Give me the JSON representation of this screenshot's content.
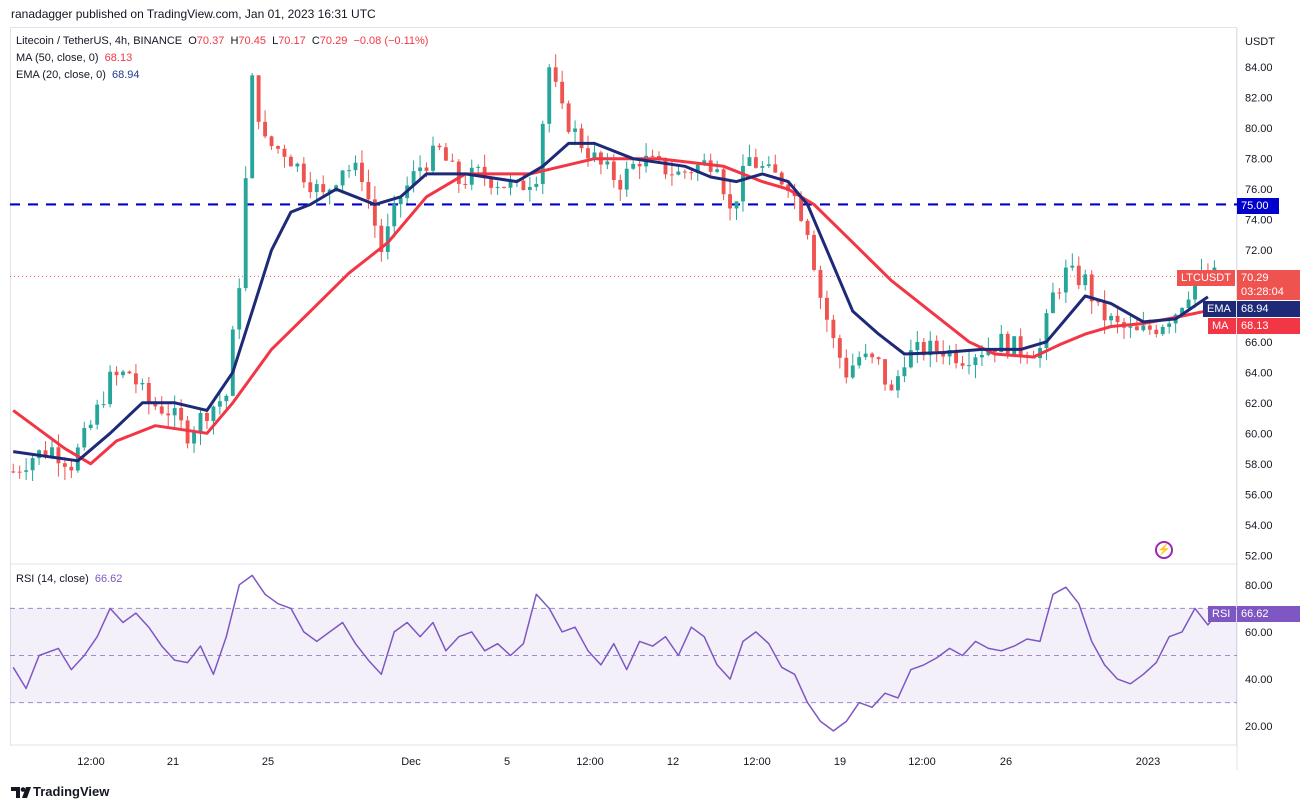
{
  "header": {
    "publisher_line": "ranadagger published on TradingView.com, Jan 01, 2023 16:31 UTC"
  },
  "legend": {
    "symbol": "Litecoin / TetherUS, 4h, BINANCE",
    "open_label": "O",
    "open": "70.37",
    "high_label": "H",
    "high": "70.45",
    "low_label": "L",
    "low": "70.17",
    "close_label": "C",
    "close": "70.29",
    "change": "−0.08 (−0.11%)",
    "ma_label": "MA (50, close, 0)",
    "ma_value": "68.13",
    "ema_label": "EMA (20, close, 0)",
    "ema_value": "68.94",
    "rsi_label": "RSI (14, close)",
    "rsi_value": "66.62"
  },
  "tags": {
    "level": "75.00",
    "symbol": "LTCUSDT",
    "price": "70.29",
    "countdown": "03:28:04",
    "ema": "EMA",
    "ema_value": "68.94",
    "ma": "MA",
    "ma_value": "68.13",
    "rsi": "RSI",
    "rsi_value": "66.62"
  },
  "footer": {
    "brand": "TradingView"
  },
  "colors": {
    "up": "#26a69a",
    "down": "#ef5350",
    "ema": "#1e2a78",
    "ma": "#f23645",
    "rsi": "#7e57c2",
    "level": "#0000cc"
  },
  "chart_data": [
    {
      "type": "candlestick",
      "title": "Litecoin / TetherUS, 4h, BINANCE",
      "y_unit": "USDT",
      "ylim": [
        51.5,
        86.5
      ],
      "y_ticks": [
        "52.00",
        "54.00",
        "56.00",
        "58.00",
        "60.00",
        "62.00",
        "64.00",
        "66.00",
        "68.00",
        "70.00",
        "72.00",
        "74.00",
        "76.00",
        "78.00",
        "80.00",
        "82.00",
        "84.00"
      ],
      "x_ticks": [
        "12:00",
        "21",
        "25",
        "Dec",
        "5",
        "12:00",
        "12",
        "12:00",
        "19",
        "12:00",
        "26",
        "2023"
      ],
      "horizontal_line": {
        "value": 75.0,
        "style": "dashed"
      },
      "last_price": 70.29,
      "close_path": [
        [
          0,
          57.5
        ],
        [
          3,
          58.5
        ],
        [
          6,
          59.0
        ],
        [
          9,
          58.0
        ],
        [
          12,
          60.5
        ],
        [
          15,
          63.5
        ],
        [
          18,
          64.0
        ],
        [
          21,
          62.0
        ],
        [
          24,
          61.5
        ],
        [
          27,
          60.0
        ],
        [
          30,
          61.5
        ],
        [
          33,
          62.5
        ],
        [
          35,
          70.0
        ],
        [
          37,
          83.0
        ],
        [
          39,
          79.0
        ],
        [
          42,
          78.5
        ],
        [
          45,
          77.0
        ],
        [
          48,
          75.5
        ],
        [
          51,
          77.5
        ],
        [
          54,
          77.0
        ],
        [
          57,
          72.0
        ],
        [
          60,
          75.5
        ],
        [
          63,
          77.5
        ],
        [
          66,
          78.5
        ],
        [
          69,
          76.5
        ],
        [
          72,
          77.0
        ],
        [
          75,
          76.5
        ],
        [
          78,
          76.0
        ],
        [
          81,
          77.0
        ],
        [
          83,
          84.0
        ],
        [
          85,
          81.0
        ],
        [
          88,
          79.0
        ],
        [
          91,
          77.5
        ],
        [
          94,
          76.5
        ],
        [
          97,
          78.0
        ],
        [
          100,
          77.5
        ],
        [
          103,
          77.0
        ],
        [
          106,
          77.5
        ],
        [
          109,
          78.0
        ],
        [
          111,
          74.5
        ],
        [
          114,
          78.0
        ],
        [
          117,
          77.0
        ],
        [
          120,
          76.5
        ],
        [
          123,
          73.5
        ],
        [
          125,
          69.0
        ],
        [
          127,
          66.0
        ],
        [
          129,
          64.0
        ],
        [
          131,
          65.0
        ],
        [
          134,
          64.5
        ],
        [
          136,
          62.5
        ],
        [
          138,
          65.0
        ],
        [
          141,
          65.5
        ],
        [
          144,
          65.5
        ],
        [
          147,
          65.0
        ],
        [
          150,
          65.5
        ],
        [
          153,
          66.0
        ],
        [
          156,
          65.5
        ],
        [
          159,
          65.5
        ],
        [
          161,
          69.0
        ],
        [
          163,
          70.5
        ],
        [
          166,
          70.0
        ],
        [
          168,
          68.0
        ],
        [
          171,
          67.0
        ],
        [
          174,
          66.5
        ],
        [
          177,
          67.0
        ],
        [
          180,
          68.0
        ],
        [
          183,
          70.0
        ],
        [
          186,
          70.29
        ]
      ],
      "series": [
        {
          "name": "EMA (20, close, 0)",
          "points": [
            [
              0,
              58.8
            ],
            [
              10,
              58.2
            ],
            [
              15,
              60.0
            ],
            [
              20,
              62.0
            ],
            [
              25,
              62.0
            ],
            [
              30,
              61.5
            ],
            [
              34,
              64.0
            ],
            [
              37,
              68.0
            ],
            [
              40,
              72.0
            ],
            [
              43,
              74.5
            ],
            [
              46,
              75.0
            ],
            [
              50,
              76.0
            ],
            [
              53,
              75.5
            ],
            [
              56,
              75.0
            ],
            [
              60,
              75.5
            ],
            [
              64,
              77.0
            ],
            [
              70,
              77.0
            ],
            [
              78,
              76.5
            ],
            [
              82,
              77.5
            ],
            [
              86,
              79.0
            ],
            [
              90,
              79.0
            ],
            [
              96,
              78.0
            ],
            [
              104,
              77.5
            ],
            [
              108,
              76.8
            ],
            [
              112,
              76.5
            ],
            [
              116,
              77.0
            ],
            [
              120,
              76.5
            ],
            [
              123,
              75.0
            ],
            [
              126,
              72.0
            ],
            [
              130,
              68.0
            ],
            [
              134,
              66.5
            ],
            [
              138,
              65.2
            ],
            [
              144,
              65.3
            ],
            [
              150,
              65.5
            ],
            [
              156,
              65.5
            ],
            [
              160,
              66.0
            ],
            [
              163,
              67.5
            ],
            [
              166,
              69.0
            ],
            [
              170,
              68.5
            ],
            [
              175,
              67.3
            ],
            [
              180,
              67.5
            ],
            [
              185,
              68.94
            ]
          ]
        },
        {
          "name": "MA (50, close, 0)",
          "points": [
            [
              0,
              61.5
            ],
            [
              8,
              59.0
            ],
            [
              12,
              58.0
            ],
            [
              16,
              59.5
            ],
            [
              22,
              60.5
            ],
            [
              30,
              60.0
            ],
            [
              34,
              62.0
            ],
            [
              40,
              65.5
            ],
            [
              46,
              68.0
            ],
            [
              52,
              70.5
            ],
            [
              58,
              72.5
            ],
            [
              64,
              75.5
            ],
            [
              70,
              77.0
            ],
            [
              80,
              77.0
            ],
            [
              90,
              78.0
            ],
            [
              100,
              78.0
            ],
            [
              110,
              77.5
            ],
            [
              116,
              76.5
            ],
            [
              120,
              76.0
            ],
            [
              124,
              75.0
            ],
            [
              130,
              72.5
            ],
            [
              136,
              70.0
            ],
            [
              142,
              68.0
            ],
            [
              148,
              66.0
            ],
            [
              152,
              65.2
            ],
            [
              158,
              65.0
            ],
            [
              162,
              65.8
            ],
            [
              166,
              66.5
            ],
            [
              170,
              67.0
            ],
            [
              175,
              67.2
            ],
            [
              180,
              67.6
            ],
            [
              186,
              68.13
            ]
          ]
        }
      ]
    },
    {
      "type": "line",
      "title": "RSI (14, close)",
      "ylim": [
        12,
        88
      ],
      "y_ticks": [
        "20.00",
        "40.00",
        "60.00",
        "80.00"
      ],
      "bands": [
        30,
        50,
        70
      ],
      "series": [
        {
          "name": "RSI (14, close)",
          "points": [
            [
              0,
              45
            ],
            [
              2,
              36
            ],
            [
              4,
              50
            ],
            [
              7,
              53
            ],
            [
              9,
              44
            ],
            [
              11,
              50
            ],
            [
              13,
              58
            ],
            [
              15,
              70
            ],
            [
              17,
              64
            ],
            [
              19,
              68
            ],
            [
              21,
              62
            ],
            [
              23,
              54
            ],
            [
              25,
              48
            ],
            [
              27,
              47
            ],
            [
              29,
              54
            ],
            [
              31,
              42
            ],
            [
              33,
              58
            ],
            [
              35,
              80
            ],
            [
              37,
              84
            ],
            [
              39,
              76
            ],
            [
              41,
              72
            ],
            [
              43,
              70
            ],
            [
              45,
              60
            ],
            [
              47,
              56
            ],
            [
              49,
              60
            ],
            [
              51,
              64
            ],
            [
              53,
              55
            ],
            [
              55,
              48
            ],
            [
              57,
              42
            ],
            [
              59,
              60
            ],
            [
              61,
              64
            ],
            [
              63,
              58
            ],
            [
              65,
              64
            ],
            [
              67,
              52
            ],
            [
              69,
              58
            ],
            [
              71,
              60
            ],
            [
              73,
              52
            ],
            [
              75,
              55
            ],
            [
              77,
              50
            ],
            [
              79,
              55
            ],
            [
              81,
              76
            ],
            [
              83,
              70
            ],
            [
              85,
              60
            ],
            [
              87,
              62
            ],
            [
              89,
              52
            ],
            [
              91,
              46
            ],
            [
              93,
              55
            ],
            [
              95,
              44
            ],
            [
              97,
              56
            ],
            [
              99,
              54
            ],
            [
              101,
              58
            ],
            [
              103,
              50
            ],
            [
              105,
              62
            ],
            [
              107,
              58
            ],
            [
              109,
              46
            ],
            [
              111,
              40
            ],
            [
              113,
              56
            ],
            [
              115,
              60
            ],
            [
              117,
              55
            ],
            [
              119,
              45
            ],
            [
              121,
              42
            ],
            [
              123,
              30
            ],
            [
              125,
              22
            ],
            [
              127,
              18
            ],
            [
              129,
              22
            ],
            [
              131,
              30
            ],
            [
              133,
              28
            ],
            [
              135,
              34
            ],
            [
              137,
              32
            ],
            [
              139,
              44
            ],
            [
              141,
              46
            ],
            [
              143,
              49
            ],
            [
              145,
              53
            ],
            [
              147,
              50
            ],
            [
              149,
              56
            ],
            [
              151,
              53
            ],
            [
              153,
              52
            ],
            [
              155,
              54
            ],
            [
              157,
              57
            ],
            [
              159,
              56
            ],
            [
              161,
              76
            ],
            [
              163,
              79
            ],
            [
              165,
              72
            ],
            [
              167,
              56
            ],
            [
              169,
              46
            ],
            [
              171,
              40
            ],
            [
              173,
              38
            ],
            [
              175,
              42
            ],
            [
              177,
              47
            ],
            [
              179,
              58
            ],
            [
              181,
              60
            ],
            [
              183,
              70
            ],
            [
              185,
              63
            ],
            [
              186,
              66.62
            ]
          ]
        }
      ]
    }
  ]
}
